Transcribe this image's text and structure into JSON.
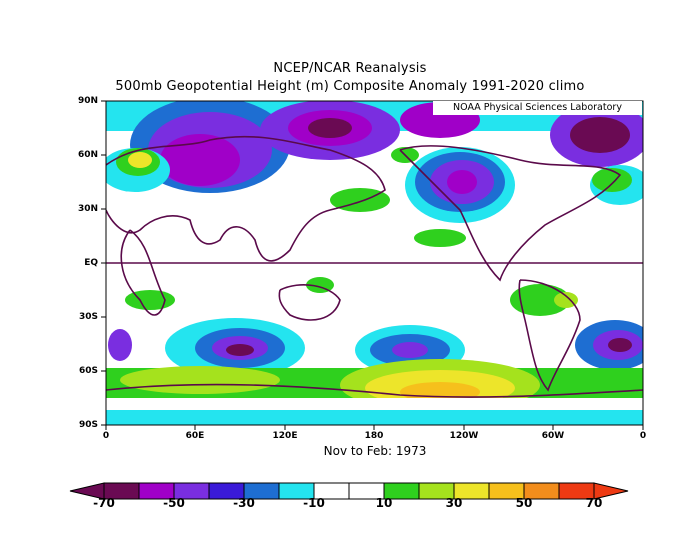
{
  "title_line1": "NCEP/NCAR Reanalysis",
  "title_line2": "500mb Geopotential Height (m) Composite Anomaly 1991-2020 climo",
  "credit": "NOAA Physical Sciences Laboratory",
  "period": "Nov to Feb: 1973",
  "lat_labels": [
    "90N",
    "60N",
    "30N",
    "EQ",
    "30S",
    "60S",
    "90S"
  ],
  "lon_labels": [
    "0",
    "60E",
    "120E",
    "180",
    "120W",
    "60W",
    "0"
  ],
  "colorbar": {
    "labels": [
      "-70",
      "-50",
      "-30",
      "-10",
      "10",
      "30",
      "50",
      "70"
    ],
    "colors": [
      "#6a0a53",
      "#a000c8",
      "#7a2ee0",
      "#3a1ad8",
      "#1e6ed2",
      "#24e4ef",
      "#ffffff",
      "#ffffff",
      "#2fd01e",
      "#a5e21d",
      "#ede52a",
      "#f6c01c",
      "#f28d1c",
      "#ee3a13",
      "#ee3a13"
    ]
  },
  "colors": {
    "land_outline": "#5a0a4a",
    "equator_line": "#5a0a4a"
  }
}
